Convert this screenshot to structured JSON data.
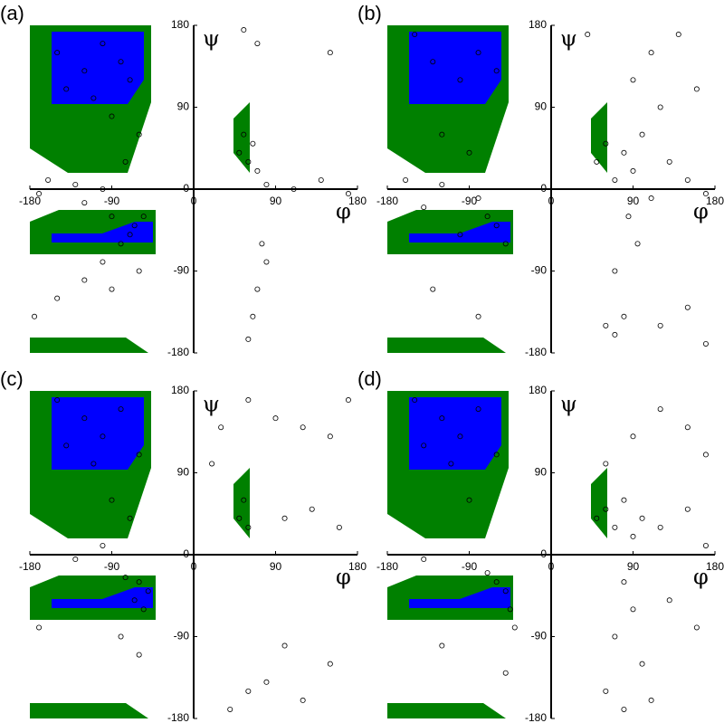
{
  "chart_data": [
    {
      "type": "scatter",
      "label": "(a)",
      "x_label": "φ",
      "y_label": "ψ",
      "xlim": [
        -180,
        180
      ],
      "ylim": [
        -180,
        180
      ],
      "xticks": [
        -180,
        -90,
        0,
        90,
        180
      ],
      "yticks": [
        180,
        90,
        0,
        -90,
        -180
      ],
      "marker_color": "#000000",
      "x": [
        -150,
        -120,
        -100,
        -80,
        -70,
        -140,
        -110,
        -90,
        -60,
        -75,
        -160,
        -130,
        -100,
        -170,
        -120,
        -90,
        -65,
        -70,
        -55,
        -80,
        -100,
        -120,
        -150,
        -90,
        -60,
        50,
        55,
        60,
        65,
        70,
        80,
        110,
        140,
        170,
        75,
        80,
        70,
        65,
        60,
        55,
        70,
        150,
        -175
      ],
      "y": [
        150,
        130,
        160,
        140,
        120,
        110,
        100,
        80,
        60,
        30,
        10,
        5,
        0,
        -5,
        -15,
        -30,
        -40,
        -50,
        -30,
        -60,
        -80,
        -100,
        -120,
        -110,
        -90,
        40,
        60,
        30,
        50,
        20,
        5,
        0,
        10,
        -5,
        -60,
        -80,
        -110,
        -140,
        -165,
        175,
        160,
        150,
        -140
      ]
    },
    {
      "type": "scatter",
      "label": "(b)",
      "x_label": "φ",
      "y_label": "ψ",
      "xlim": [
        -180,
        180
      ],
      "ylim": [
        -180,
        180
      ],
      "xticks": [
        -180,
        -90,
        0,
        90,
        180
      ],
      "yticks": [
        180,
        90,
        0,
        -90,
        -180
      ],
      "marker_color": "#000000",
      "x": [
        -150,
        -130,
        -100,
        -80,
        -60,
        -120,
        -90,
        -160,
        -120,
        -80,
        -60,
        -70,
        -140,
        -100,
        -50,
        -130,
        -80,
        50,
        60,
        70,
        80,
        90,
        100,
        110,
        130,
        150,
        170,
        85,
        95,
        70,
        90,
        110,
        140,
        40,
        160,
        120,
        60,
        70,
        80,
        120,
        150,
        170
      ],
      "y": [
        170,
        140,
        120,
        150,
        130,
        60,
        40,
        10,
        5,
        -10,
        -40,
        -30,
        -20,
        -50,
        -60,
        -110,
        -140,
        30,
        50,
        10,
        40,
        20,
        60,
        -10,
        30,
        10,
        -5,
        -30,
        -60,
        -90,
        120,
        150,
        170,
        170,
        110,
        90,
        -150,
        -160,
        -140,
        -150,
        -130,
        -170
      ]
    },
    {
      "type": "scatter",
      "label": "(c)",
      "x_label": "φ",
      "y_label": "ψ",
      "xlim": [
        -180,
        180
      ],
      "ylim": [
        -180,
        180
      ],
      "xticks": [
        -180,
        -90,
        0,
        90,
        180
      ],
      "yticks": [
        180,
        90,
        0,
        -90,
        -180
      ],
      "marker_color": "#000000",
      "x": [
        -150,
        -120,
        -100,
        -80,
        -60,
        -140,
        -110,
        -90,
        -70,
        -100,
        -130,
        -60,
        -50,
        -65,
        -75,
        -55,
        -80,
        -60,
        -170,
        50,
        55,
        60,
        20,
        30,
        60,
        90,
        120,
        150,
        170,
        100,
        130,
        160,
        60,
        80,
        120,
        150,
        40,
        100
      ],
      "y": [
        170,
        150,
        130,
        160,
        110,
        120,
        100,
        60,
        40,
        10,
        -5,
        -30,
        -40,
        -50,
        -25,
        -60,
        -90,
        -110,
        -80,
        40,
        60,
        30,
        100,
        140,
        170,
        150,
        140,
        130,
        170,
        40,
        50,
        30,
        -150,
        -140,
        -160,
        -120,
        -170,
        -100
      ]
    },
    {
      "type": "scatter",
      "label": "(d)",
      "x_label": "φ",
      "y_label": "ψ",
      "xlim": [
        -180,
        180
      ],
      "ylim": [
        -180,
        180
      ],
      "xticks": [
        -180,
        -90,
        0,
        90,
        180
      ],
      "yticks": [
        180,
        90,
        0,
        -90,
        -180
      ],
      "marker_color": "#000000",
      "x": [
        -150,
        -120,
        -100,
        -80,
        -60,
        -140,
        -110,
        -90,
        -140,
        -60,
        -50,
        -45,
        -70,
        -40,
        -120,
        -50,
        50,
        60,
        70,
        80,
        90,
        100,
        120,
        150,
        170,
        80,
        90,
        70,
        100,
        60,
        80,
        110,
        60,
        90,
        120,
        150,
        170,
        130,
        160
      ],
      "y": [
        170,
        150,
        130,
        160,
        110,
        120,
        100,
        60,
        -5,
        -30,
        -40,
        -60,
        -20,
        -80,
        -100,
        -130,
        40,
        50,
        30,
        60,
        20,
        40,
        30,
        50,
        10,
        -30,
        -60,
        -90,
        -120,
        -150,
        -170,
        -160,
        100,
        130,
        160,
        140,
        110,
        -50,
        -80
      ]
    }
  ]
}
